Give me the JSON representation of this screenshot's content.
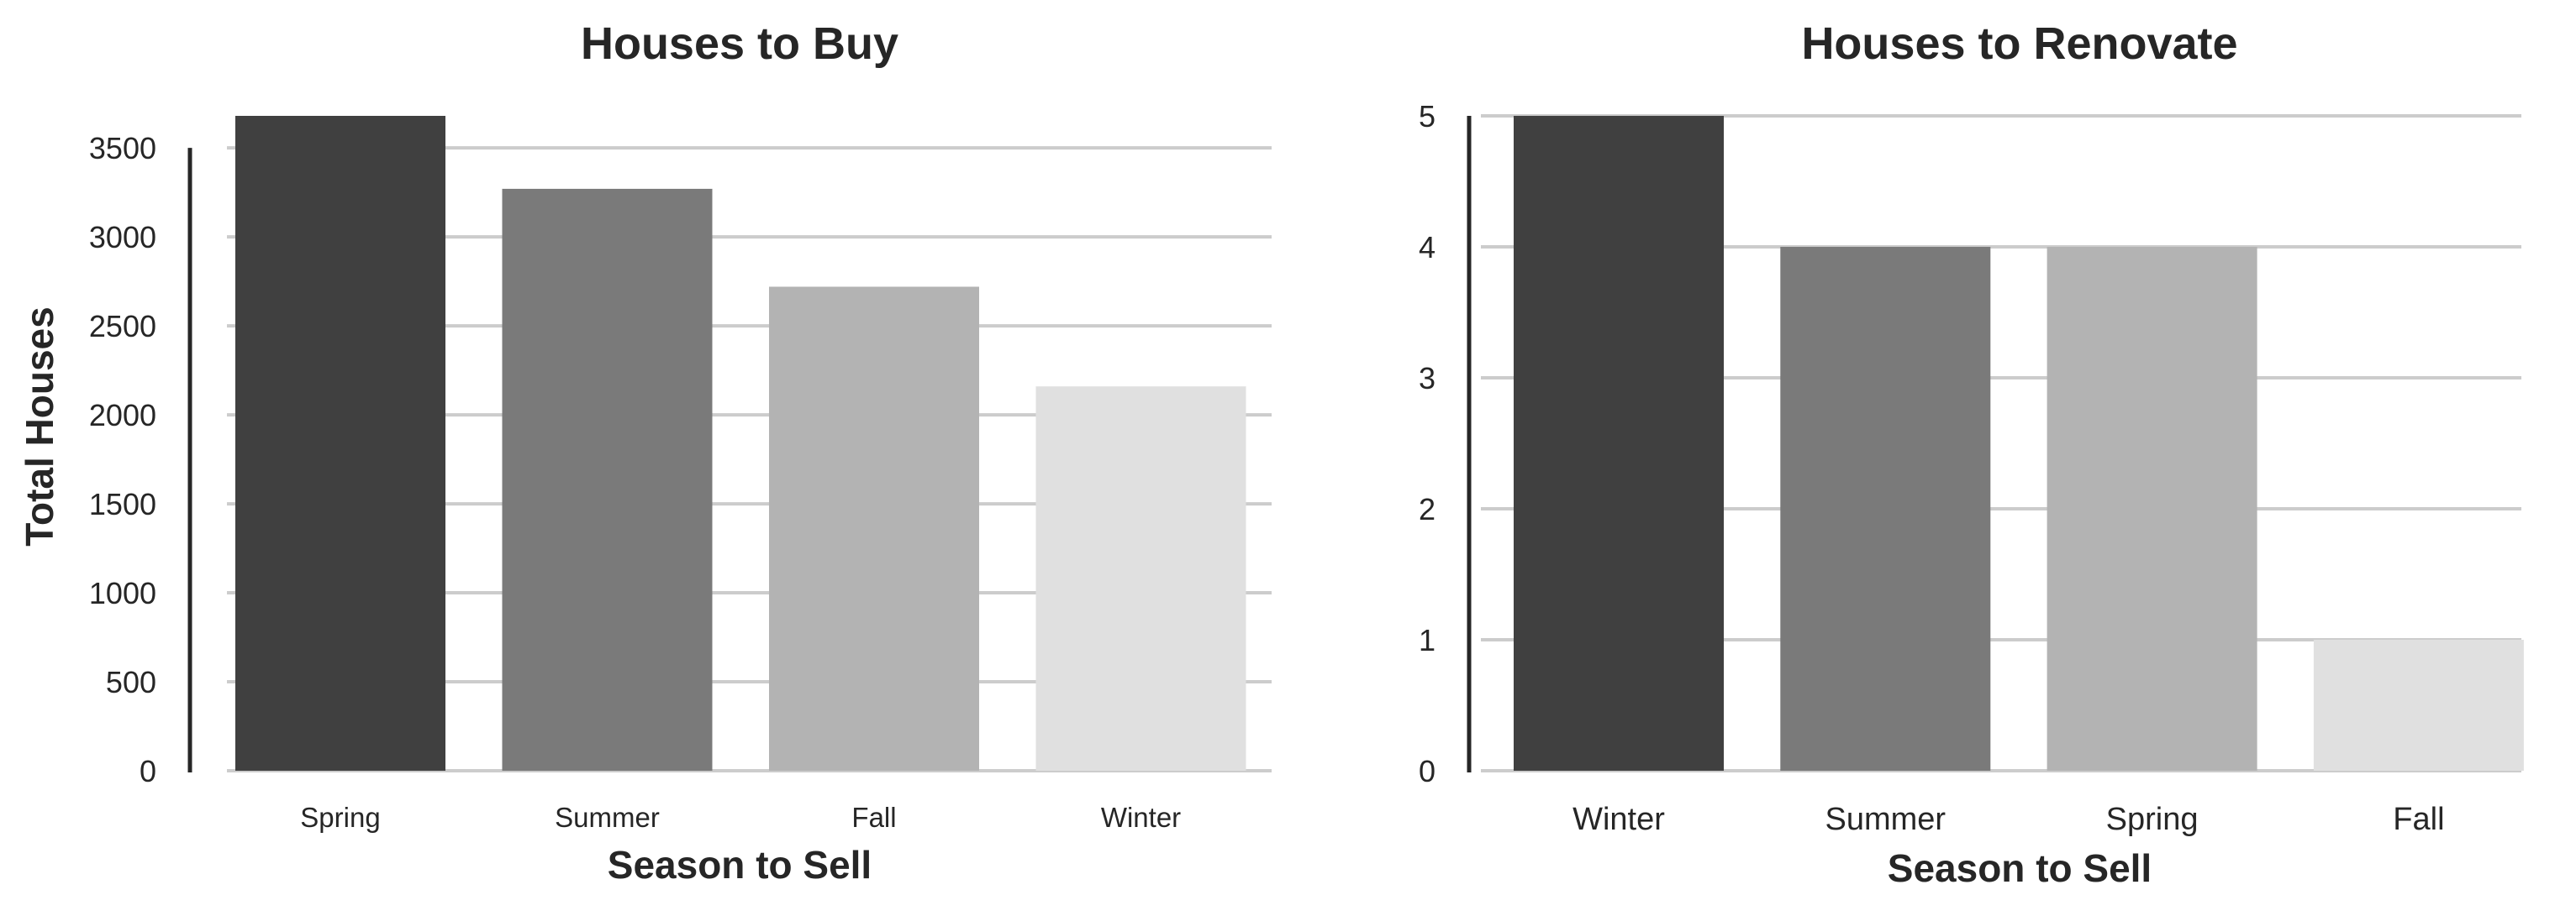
{
  "chart_data": [
    {
      "type": "bar",
      "title": "Houses to Buy",
      "xlabel": "Season to Sell",
      "ylabel": "Total Houses",
      "categories": [
        "Spring",
        "Summer",
        "Fall",
        "Winter"
      ],
      "values": [
        3680,
        3270,
        2720,
        2160
      ],
      "colors": [
        "#404040",
        "#7a7a7a",
        "#b3b3b3",
        "#e0e0e0"
      ],
      "ylim": [
        0,
        3680
      ],
      "yticks": [
        0,
        500,
        1000,
        1500,
        2000,
        2500,
        3000,
        3500
      ],
      "grid": true
    },
    {
      "type": "bar",
      "title": "Houses to Renovate",
      "xlabel": "Season to Sell",
      "ylabel": "",
      "categories": [
        "Winter",
        "Summer",
        "Spring",
        "Fall"
      ],
      "values": [
        5,
        4,
        4,
        1
      ],
      "colors": [
        "#404040",
        "#7a7a7a",
        "#b3b3b3",
        "#e0e0e0"
      ],
      "ylim": [
        0,
        5
      ],
      "yticks": [
        0,
        1,
        2,
        3,
        4,
        5
      ],
      "grid": true
    }
  ]
}
